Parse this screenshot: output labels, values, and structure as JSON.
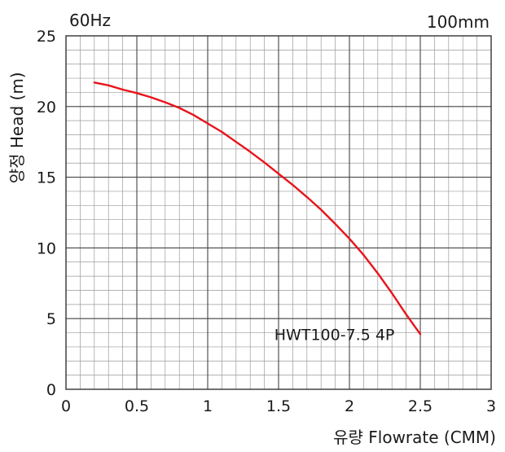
{
  "chart_data": {
    "type": "line",
    "xlabel": "유량 Flowrate (CMM)",
    "ylabel": "양정 Head (m)",
    "top_left_text": "60Hz",
    "top_right_text": "100mm",
    "xlim": [
      0,
      3
    ],
    "ylim": [
      0,
      25
    ],
    "x_ticks": [
      0,
      0.5,
      1,
      1.5,
      2,
      2.5,
      3
    ],
    "x_tick_labels": [
      "0",
      "0.5",
      "1",
      "1.5",
      "2",
      "2.5",
      "3"
    ],
    "y_ticks": [
      0,
      5,
      10,
      15,
      20,
      25
    ],
    "y_tick_labels": [
      "0",
      "5",
      "10",
      "15",
      "20",
      "25"
    ],
    "minor_x_step": 0.1,
    "minor_y_step": 1,
    "grid": true,
    "line_color": "#e8141b",
    "series": [
      {
        "name": "HWT100-7.5 4P",
        "x": [
          0.2,
          0.3,
          0.4,
          0.5,
          0.6,
          0.7,
          0.8,
          0.9,
          1.0,
          1.1,
          1.2,
          1.3,
          1.4,
          1.5,
          1.6,
          1.7,
          1.8,
          1.9,
          2.0,
          2.1,
          2.2,
          2.3,
          2.4,
          2.5
        ],
        "y": [
          21.7,
          21.5,
          21.2,
          20.95,
          20.65,
          20.3,
          19.9,
          19.4,
          18.8,
          18.2,
          17.5,
          16.8,
          16.05,
          15.25,
          14.45,
          13.6,
          12.7,
          11.7,
          10.65,
          9.5,
          8.2,
          6.8,
          5.3,
          3.9
        ]
      }
    ],
    "annotation": {
      "text": "HWT100-7.5 4P",
      "x": 1.47,
      "y": 3.9
    }
  }
}
